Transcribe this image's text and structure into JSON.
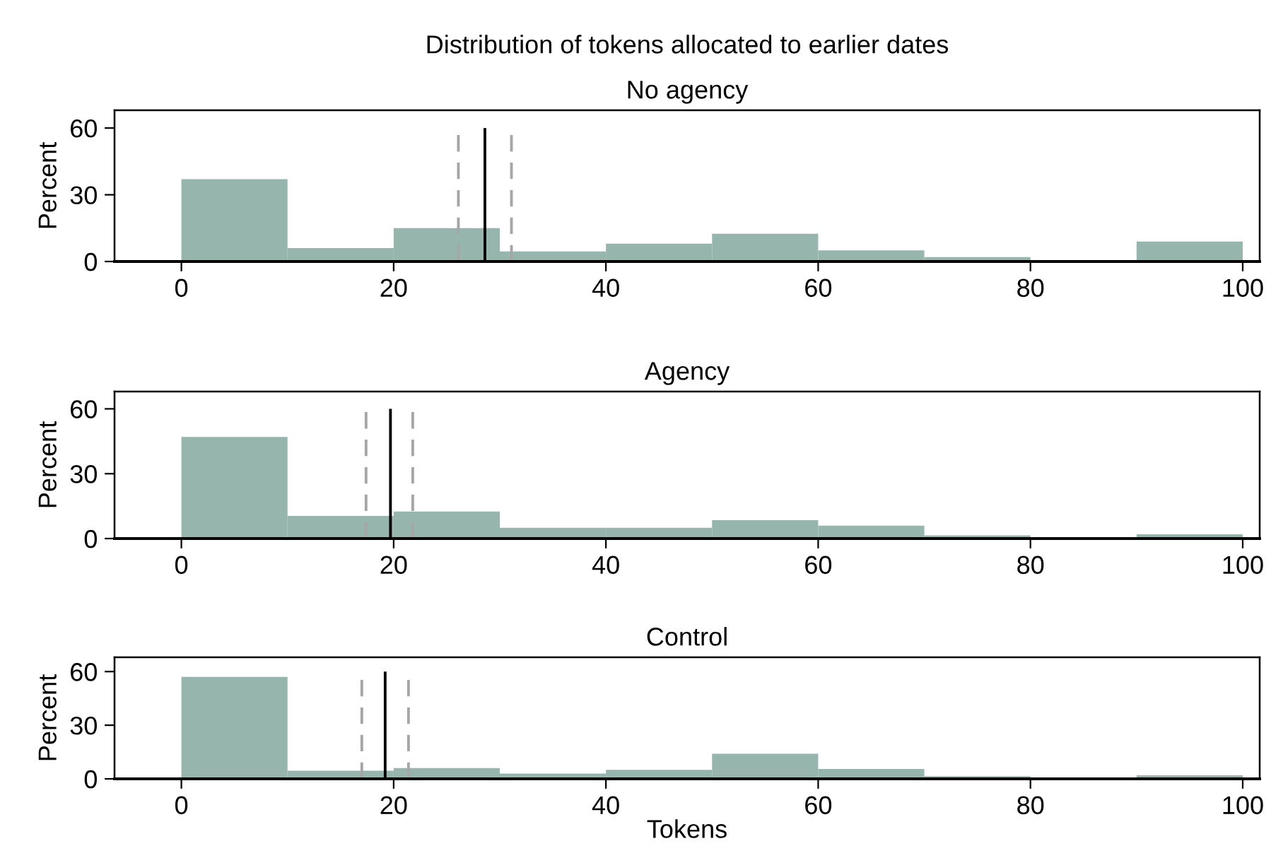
{
  "chart_data": [
    {
      "type": "histogram",
      "title": "Distribution of tokens allocated to earlier dates",
      "subtitle": "No agency",
      "ylabel": "Percent",
      "bins": [
        0,
        10,
        20,
        30,
        40,
        50,
        60,
        70,
        80,
        90,
        100
      ],
      "values": [
        37,
        6,
        15,
        4.5,
        8,
        12.5,
        5,
        2,
        0,
        9
      ],
      "color": "#96b5ad",
      "xlim": [
        -6.3,
        101.6
      ],
      "xticks": [
        0,
        20,
        40,
        60,
        80,
        100
      ],
      "ylim": [
        0,
        68
      ],
      "yticks": [
        0,
        30,
        60
      ],
      "grid": false,
      "ref_lines": [
        {
          "axis": "x",
          "value": 26.1,
          "color": "#a6a6a6",
          "line_style": "dashed"
        },
        {
          "axis": "x",
          "value": 31.1,
          "color": "#a6a6a6",
          "line_style": "dashed"
        },
        {
          "axis": "x",
          "value": 28.6,
          "color": "#000000",
          "line_style": "solid"
        }
      ]
    },
    {
      "type": "histogram",
      "title": "Agency",
      "ylabel": "Percent",
      "bins": [
        0,
        10,
        20,
        30,
        40,
        50,
        60,
        70,
        80,
        90,
        100
      ],
      "values": [
        47,
        10.5,
        12.5,
        5,
        5,
        8.5,
        6,
        1.5,
        0.5,
        2
      ],
      "color": "#96b5ad",
      "xlim": [
        -6.3,
        101.6
      ],
      "xticks": [
        0,
        20,
        40,
        60,
        80,
        100
      ],
      "ylim": [
        0,
        68
      ],
      "yticks": [
        0,
        30,
        60
      ],
      "grid": false,
      "ref_lines": [
        {
          "axis": "x",
          "value": 17.4,
          "color": "#a6a6a6",
          "line_style": "dashed"
        },
        {
          "axis": "x",
          "value": 21.8,
          "color": "#a6a6a6",
          "line_style": "dashed"
        },
        {
          "axis": "x",
          "value": 19.7,
          "color": "#000000",
          "line_style": "solid"
        }
      ]
    },
    {
      "type": "histogram",
      "title": "Control",
      "xlabel": "Tokens",
      "ylabel": "Percent",
      "bins": [
        0,
        10,
        20,
        30,
        40,
        50,
        60,
        70,
        80,
        90,
        100
      ],
      "values": [
        57,
        4.5,
        6,
        3,
        5,
        14,
        5.5,
        1.5,
        0.5,
        2
      ],
      "color": "#96b5ad",
      "xlim": [
        -6.3,
        101.6
      ],
      "xticks": [
        0,
        20,
        40,
        60,
        80,
        100
      ],
      "ylim": [
        0,
        68
      ],
      "yticks": [
        0,
        30,
        60
      ],
      "grid": false,
      "ref_lines": [
        {
          "axis": "x",
          "value": 17.0,
          "color": "#a6a6a6",
          "line_style": "dashed"
        },
        {
          "axis": "x",
          "value": 21.4,
          "color": "#a6a6a6",
          "line_style": "dashed"
        },
        {
          "axis": "x",
          "value": 19.2,
          "color": "#000000",
          "line_style": "solid"
        }
      ]
    }
  ]
}
